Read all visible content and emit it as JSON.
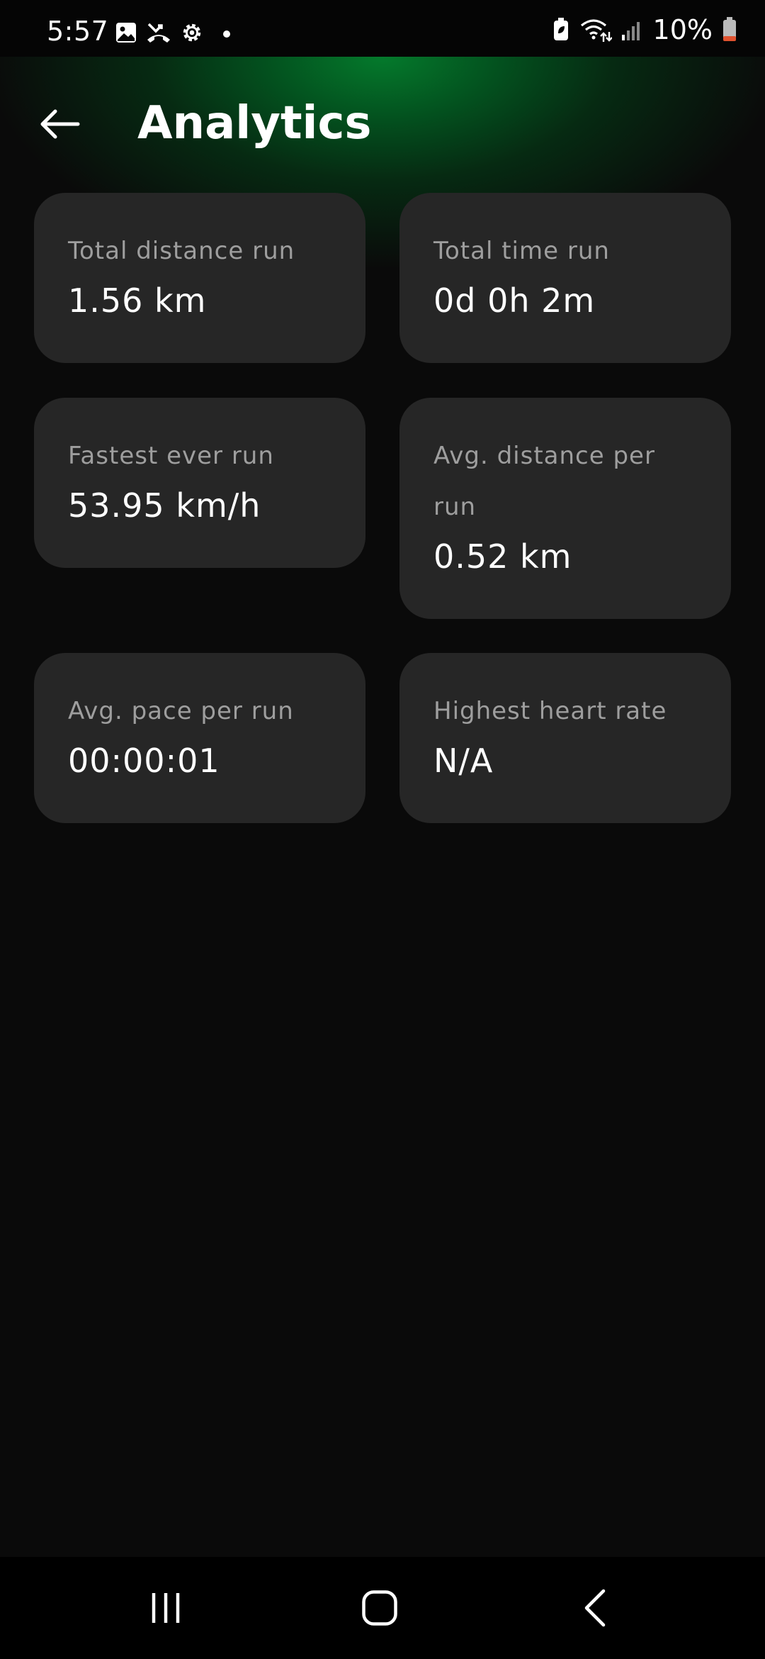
{
  "status_bar": {
    "time": "5:57",
    "battery_percent": "10%",
    "icons": [
      "gallery-icon",
      "missed-call-icon",
      "settings-gear-icon",
      "notification-dot-icon",
      "battery-saver-icon",
      "wifi-icon",
      "signal-icon",
      "battery-icon"
    ]
  },
  "header": {
    "title": "Analytics",
    "back_icon": "arrow-left-icon"
  },
  "stats": [
    {
      "label": "Total distance run",
      "value": "1.56 km"
    },
    {
      "label": "Total time run",
      "value": "0d 0h 2m"
    },
    {
      "label": "Fastest ever run",
      "value": "53.95 km/h"
    },
    {
      "label": "Avg. distance per run",
      "value": "0.52 km"
    },
    {
      "label": "Avg. pace per run",
      "value": "00:00:01"
    },
    {
      "label": "Highest heart rate",
      "value": "N/A"
    }
  ],
  "nav_bar": {
    "recents_icon": "recents-icon",
    "home_icon": "home-icon",
    "back_icon": "nav-back-icon"
  },
  "colors": {
    "background": "#0a0a0a",
    "card": "#262626",
    "accent_green": "#047a2c",
    "label_gray": "#9e9e9e",
    "battery_low": "#e0522f"
  }
}
